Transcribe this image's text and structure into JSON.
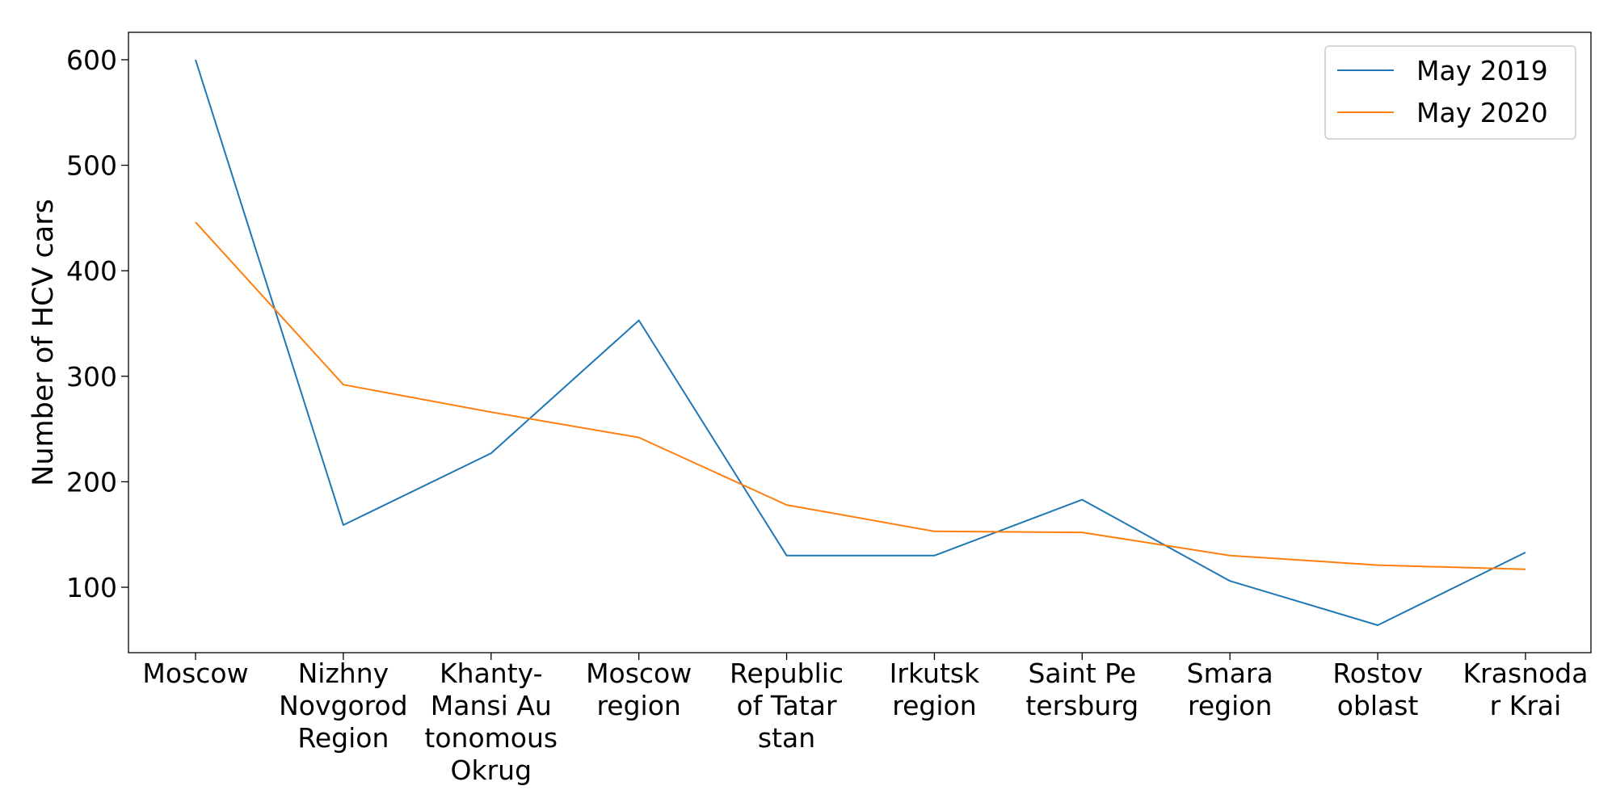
{
  "chart_data": {
    "type": "line",
    "categories": [
      [
        "Moscow"
      ],
      [
        "Nizhny",
        "Novgorod",
        "Region"
      ],
      [
        "Khanty-",
        "Mansi Au",
        "tonomous",
        "Okrug"
      ],
      [
        "Moscow",
        "region"
      ],
      [
        "Republic",
        "of Tatar",
        "stan"
      ],
      [
        "Irkutsk",
        "region"
      ],
      [
        "Saint Pe",
        "tersburg"
      ],
      [
        "Smara",
        "region"
      ],
      [
        "Rostov",
        "oblast"
      ],
      [
        "Krasnoda",
        "r Krai"
      ]
    ],
    "series": [
      {
        "name": "May 2019",
        "color": "#1f77b4",
        "values": [
          600,
          159,
          227,
          353,
          130,
          130,
          183,
          106,
          64,
          133
        ]
      },
      {
        "name": "May 2020",
        "color": "#ff7f0e",
        "values": [
          446,
          292,
          266,
          242,
          178,
          153,
          152,
          130,
          121,
          117
        ]
      }
    ],
    "title": "",
    "xlabel": "",
    "ylabel": "Number of HCV cars",
    "ylim": [
      38,
      626
    ],
    "yticks": [
      100,
      200,
      300,
      400,
      500,
      600
    ],
    "grid": false,
    "legend": "top-right"
  }
}
